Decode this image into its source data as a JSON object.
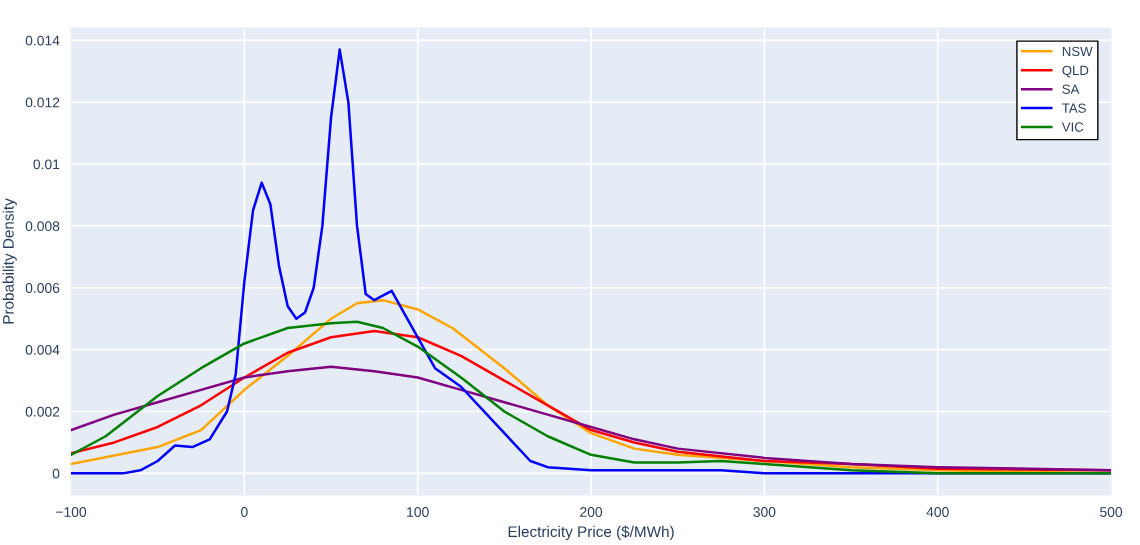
{
  "chart_data": {
    "type": "line",
    "xlabel": "Electricity Price ($/MWh)",
    "ylabel": "Probability Density",
    "xlim": [
      -100,
      500
    ],
    "xticks": [
      {
        "value": -100,
        "label": "−100"
      },
      0,
      100,
      200,
      300,
      400,
      500
    ],
    "ylim": [
      -0.0007,
      0.0144
    ],
    "yticks": [
      0,
      0.002,
      0.004,
      0.006,
      0.008,
      {
        "value": 0.01,
        "label": "0.01"
      },
      0.012,
      0.014
    ],
    "grid": true,
    "legend": "top right",
    "marker": "none",
    "line_style": "solid",
    "series": [
      {
        "name": "NSW",
        "color": "#ffa500",
        "x": [
          -100,
          -50,
          -25,
          0,
          25,
          50,
          65,
          80,
          100,
          120,
          150,
          175,
          200,
          225,
          250,
          300,
          350,
          400,
          500
        ],
        "values": [
          0.0003,
          0.00085,
          0.0014,
          0.0027,
          0.0038,
          0.005,
          0.0055,
          0.0056,
          0.0053,
          0.0047,
          0.0034,
          0.0022,
          0.0013,
          0.0008,
          0.0006,
          0.0004,
          0.0002,
          0.0001,
          0
        ]
      },
      {
        "name": "QLD",
        "color": "#ff0000",
        "x": [
          -100,
          -75,
          -50,
          -25,
          0,
          25,
          50,
          75,
          100,
          125,
          150,
          175,
          200,
          225,
          250,
          300,
          350,
          400,
          500
        ],
        "values": [
          0.00065,
          0.001,
          0.0015,
          0.0022,
          0.0031,
          0.0039,
          0.0044,
          0.0046,
          0.0044,
          0.0038,
          0.003,
          0.0022,
          0.0014,
          0.001,
          0.0007,
          0.0004,
          0.0003,
          0.00015,
          0.0001
        ]
      },
      {
        "name": "SA",
        "color": "#800080",
        "x": [
          -100,
          -75,
          -50,
          -25,
          0,
          25,
          50,
          75,
          100,
          125,
          150,
          175,
          200,
          225,
          250,
          300,
          350,
          400,
          500
        ],
        "values": [
          0.0014,
          0.0019,
          0.0023,
          0.0027,
          0.0031,
          0.0033,
          0.00345,
          0.0033,
          0.0031,
          0.0027,
          0.0023,
          0.0019,
          0.0015,
          0.0011,
          0.0008,
          0.0005,
          0.0003,
          0.0002,
          0.0001
        ]
      },
      {
        "name": "TAS",
        "color": "#0000ff",
        "x": [
          -100,
          -70,
          -60,
          -50,
          -40,
          -30,
          -20,
          -10,
          -5,
          0,
          5,
          10,
          15,
          20,
          25,
          30,
          35,
          40,
          45,
          50,
          55,
          60,
          65,
          70,
          75,
          85,
          100,
          110,
          125,
          150,
          165,
          175,
          200,
          235,
          260,
          275,
          300,
          400,
          500
        ],
        "values": [
          0,
          0,
          0.0001,
          0.0004,
          0.0009,
          0.00085,
          0.0011,
          0.002,
          0.0032,
          0.0062,
          0.0085,
          0.0094,
          0.0087,
          0.0067,
          0.0054,
          0.005,
          0.0052,
          0.006,
          0.008,
          0.0115,
          0.0137,
          0.012,
          0.008,
          0.0058,
          0.0056,
          0.0059,
          0.0044,
          0.0034,
          0.0028,
          0.0013,
          0.0004,
          0.0002,
          0.0001,
          0.0001,
          0.0001,
          0.0001,
          0,
          0,
          0
        ]
      },
      {
        "name": "VIC",
        "color": "#008000",
        "x": [
          -100,
          -80,
          -50,
          -25,
          0,
          25,
          50,
          65,
          80,
          100,
          125,
          150,
          175,
          200,
          225,
          250,
          275,
          300,
          350,
          400,
          500
        ],
        "values": [
          0.0006,
          0.0012,
          0.0025,
          0.0034,
          0.0042,
          0.0047,
          0.00485,
          0.0049,
          0.0047,
          0.0041,
          0.0031,
          0.002,
          0.0012,
          0.0006,
          0.00035,
          0.00035,
          0.0004,
          0.0003,
          0.0001,
          0,
          0
        ]
      }
    ]
  }
}
